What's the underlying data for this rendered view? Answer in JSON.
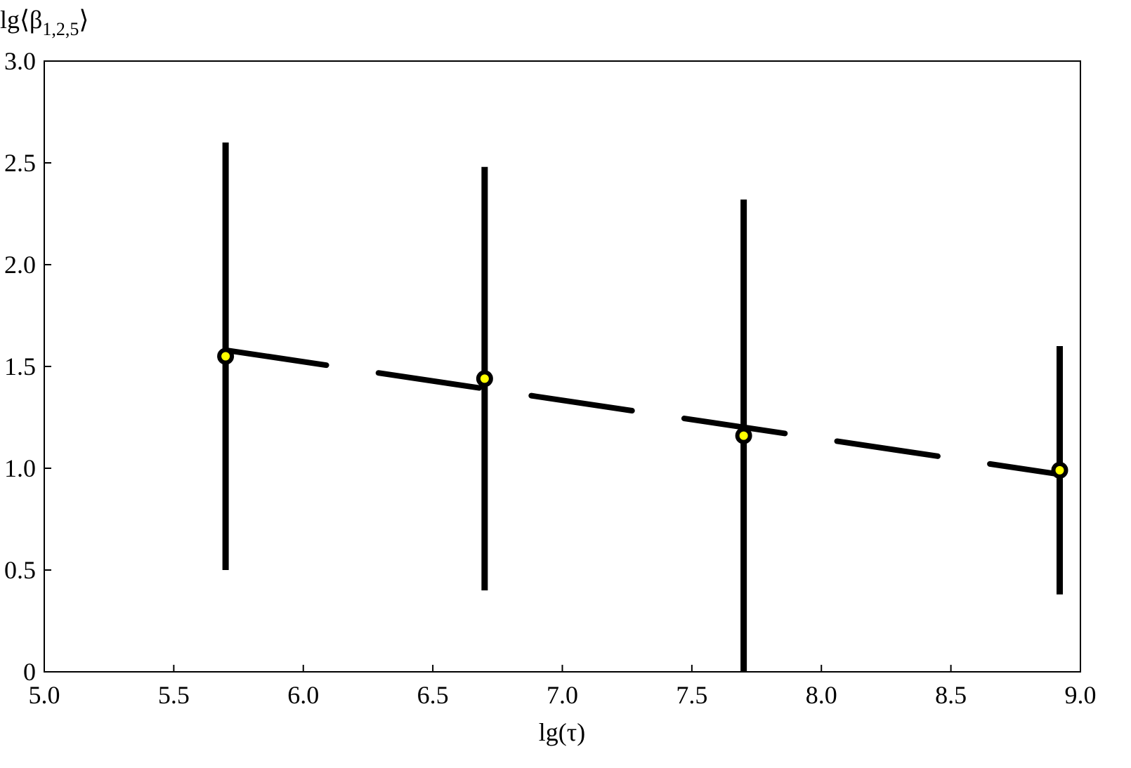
{
  "chart_data": {
    "type": "scatter",
    "ylabel_parts": [
      "lg⟨β",
      "1,2,5",
      "⟩"
    ],
    "xlabel": "lg(τ)",
    "xlim": [
      5.0,
      9.0
    ],
    "ylim": [
      0,
      3.0
    ],
    "xticks": [
      {
        "value": 5.0,
        "label": "5.0"
      },
      5.5,
      {
        "value": 6.0,
        "label": "6.0"
      },
      6.5,
      {
        "value": 7.0,
        "label": "7.0"
      },
      7.5,
      {
        "value": 8.0,
        "label": "8.0"
      },
      8.5,
      {
        "value": 9.0,
        "label": "9.0"
      }
    ],
    "yticks": [
      0,
      0.5,
      {
        "value": 1.0,
        "label": "1.0"
      },
      1.5,
      {
        "value": 2.0,
        "label": "2.0"
      },
      2.5,
      {
        "value": 3.0,
        "label": "3.0"
      }
    ],
    "series": [
      {
        "color": "#000000",
        "marker_fill": "#ffff00",
        "x": [
          5.7,
          6.7,
          7.7,
          8.92
        ],
        "values": [
          1.55,
          1.44,
          1.16,
          0.99
        ],
        "errors": [
          1.05,
          1.04,
          1.16,
          0.61
        ]
      }
    ],
    "fit": {
      "color": "#000000",
      "linestyle": "dashed",
      "x": [
        5.7,
        8.92
      ],
      "values": [
        1.58,
        0.97
      ]
    }
  }
}
